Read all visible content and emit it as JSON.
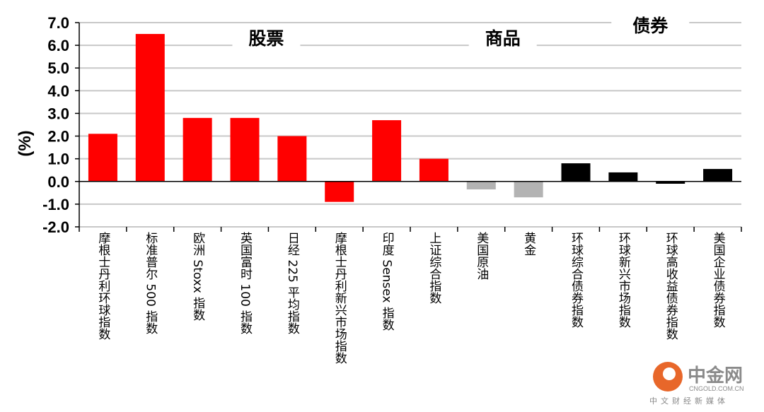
{
  "chart_data": {
    "type": "bar",
    "ylabel": "(%)",
    "ylim": [
      -2.0,
      7.0
    ],
    "yticks": [
      7.0,
      6.0,
      5.0,
      4.0,
      3.0,
      2.0,
      1.0,
      0.0,
      -1.0,
      -2.0
    ],
    "ytick_labels": [
      "7.0",
      "6.0",
      "5.0",
      "4.0",
      "3.0",
      "2.0",
      "1.0",
      "0.0",
      "-1.0",
      "-2.0"
    ],
    "grid": true,
    "groups": [
      {
        "label": "股票",
        "start": 0,
        "end": 7
      },
      {
        "label": "商品",
        "start": 8,
        "end": 9
      },
      {
        "label": "债券",
        "start": 10,
        "end": 13
      }
    ],
    "categories": [
      "摩根士丹利环球指数",
      "标准普尔 500 指数",
      "欧洲 Stoxx 指数",
      "英国富时 100 指数",
      "日经 225 平均指数",
      "摩根士丹利新兴市场指数",
      "印度 Sensex 指数",
      "上证综合指数",
      "美国原油",
      "黄金",
      "环球综合债券指数",
      "环球新兴市场指数",
      "环球高收益债券指数",
      "美国企业债券指数"
    ],
    "values": [
      2.1,
      6.5,
      2.8,
      2.8,
      2.0,
      -0.9,
      2.7,
      1.0,
      -0.35,
      -0.7,
      0.8,
      0.4,
      -0.1,
      0.55
    ],
    "bar_colors": [
      "#ff0000",
      "#ff0000",
      "#ff0000",
      "#ff0000",
      "#ff0000",
      "#ff0000",
      "#ff0000",
      "#ff0000",
      "#b3b3b3",
      "#b3b3b3",
      "#000000",
      "#000000",
      "#000000",
      "#000000"
    ]
  },
  "watermark": {
    "name": "中金网",
    "url": "CNGOLD.COM.CN",
    "subtitle": "中文财经新媒体",
    "logo_color": "#e8672a"
  }
}
